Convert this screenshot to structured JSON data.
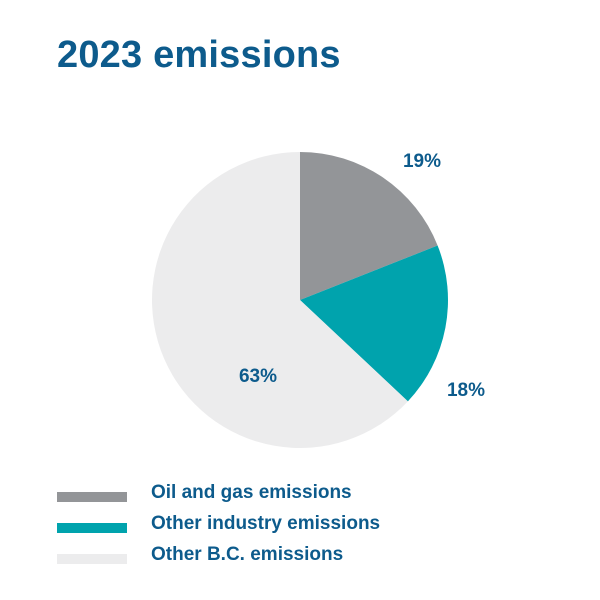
{
  "chart_data": {
    "type": "pie",
    "title": "2023 emissions",
    "categories": [
      "Oil and gas emissions",
      "Other industry emissions",
      "Other B.C. emissions"
    ],
    "values": [
      19,
      18,
      63
    ],
    "value_labels": [
      "19%",
      "18%",
      "63%"
    ],
    "colors": [
      "#939598",
      "#00a3ad",
      "#ececed"
    ],
    "label_color": "#0d5b8c",
    "start": "12 o'clock, clockwise",
    "legend": "bottom-left"
  }
}
